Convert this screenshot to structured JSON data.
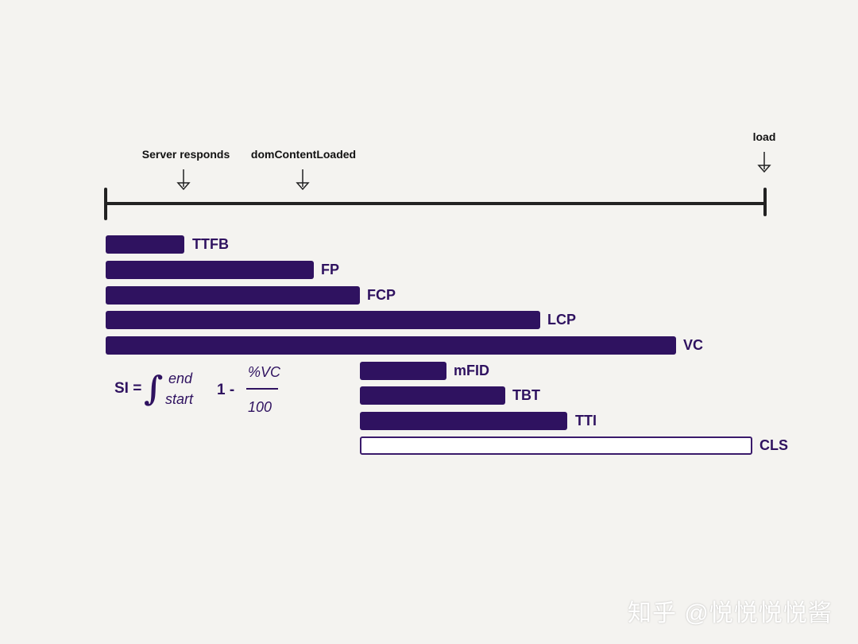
{
  "timeline": {
    "markers": [
      {
        "label": "Server responds"
      },
      {
        "label": "domContentLoaded"
      },
      {
        "label": "load"
      }
    ]
  },
  "bars": [
    {
      "label": "TTFB",
      "filled": true
    },
    {
      "label": "FP",
      "filled": true
    },
    {
      "label": "FCP",
      "filled": true
    },
    {
      "label": "LCP",
      "filled": true
    },
    {
      "label": "VC",
      "filled": true
    },
    {
      "label": "mFID",
      "filled": true
    },
    {
      "label": "TBT",
      "filled": true
    },
    {
      "label": "TTI",
      "filled": true
    },
    {
      "label": "CLS",
      "filled": false
    }
  ],
  "formula": {
    "lhs": "SI =",
    "integral": "∫",
    "upper": "end",
    "lower": "start",
    "one_minus": "1 -",
    "numerator": "%VC",
    "denominator": "100"
  },
  "watermark": "知乎 @悦悦悦悦酱",
  "colors": {
    "bar": "#2f1260",
    "background": "#f4f3f0",
    "timeline": "#222222"
  }
}
